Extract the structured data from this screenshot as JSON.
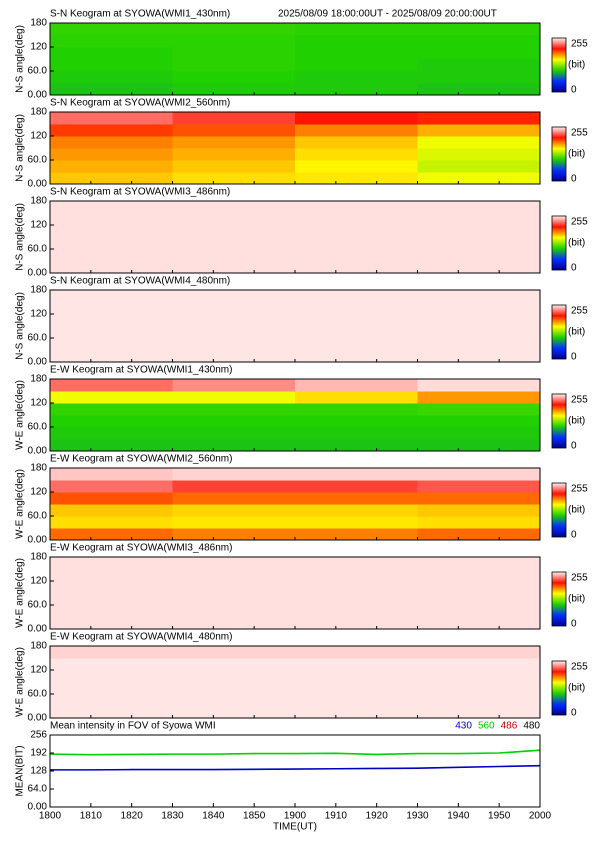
{
  "chart_data": [
    {
      "type": "heatmap",
      "title": "S-N Keogram at SYOWA(WMI1_430nm)",
      "subtitle": "2025/08/09 18:00:00UT - 2025/08/09 20:00:00UT",
      "ylabel": "N-S angle(deg)",
      "x": [
        0,
        30,
        60,
        90,
        120
      ],
      "y": [
        0,
        30,
        60,
        90,
        120,
        150,
        180
      ],
      "values": [
        [
          98,
          100,
          100,
          98
        ],
        [
          100,
          102,
          100,
          100
        ],
        [
          102,
          104,
          102,
          100
        ],
        [
          102,
          104,
          102,
          102
        ],
        [
          104,
          104,
          102,
          102
        ],
        [
          106,
          106,
          104,
          104
        ]
      ],
      "ylim": [
        0,
        180
      ],
      "yticks": [
        {
          "value": 0,
          "label": "0.00"
        },
        {
          "value": 60,
          "label": "60.0"
        },
        120,
        180
      ],
      "colormap": [
        "#000090",
        "#0030ff",
        "#20d000",
        "#ffff00",
        "#ff1000",
        "#fff2f2"
      ],
      "colorbar": {
        "ticks": [
          0,
          255
        ],
        "label": "(bit)"
      }
    },
    {
      "type": "heatmap",
      "title": "S-N Keogram at SYOWA(WMI2_560nm)",
      "ylabel": "N-S angle(deg)",
      "x": [
        0,
        30,
        60,
        90,
        120
      ],
      "y": [
        0,
        30,
        60,
        90,
        120,
        150,
        180
      ],
      "values": [
        [
          165,
          160,
          158,
          150
        ],
        [
          170,
          165,
          155,
          140
        ],
        [
          175,
          170,
          160,
          145
        ],
        [
          180,
          175,
          165,
          150
        ],
        [
          195,
          190,
          180,
          170
        ],
        [
          225,
          215,
          205,
          200
        ]
      ],
      "ylim": [
        0,
        180
      ],
      "yticks": [
        {
          "value": 0,
          "label": "0.00"
        },
        {
          "value": 60,
          "label": "60.0"
        },
        120,
        180
      ],
      "colormap": [
        "#000090",
        "#0030ff",
        "#20d000",
        "#ffff00",
        "#ff1000",
        "#fff2f2"
      ],
      "colorbar": {
        "ticks": [
          0,
          255
        ],
        "label": "(bit)"
      }
    },
    {
      "type": "heatmap",
      "title": "S-N Keogram at SYOWA(WMI3_486nm)",
      "ylabel": "N-S angle(deg)",
      "x": [
        0,
        30,
        60,
        90,
        120
      ],
      "y": [
        0,
        30,
        60,
        90,
        120,
        150,
        180
      ],
      "values": [
        [
          251,
          251,
          251,
          251
        ],
        [
          251,
          251,
          251,
          251
        ],
        [
          251,
          251,
          251,
          251
        ],
        [
          251,
          251,
          251,
          251
        ],
        [
          251,
          251,
          251,
          251
        ],
        [
          251,
          251,
          251,
          251
        ]
      ],
      "ylim": [
        0,
        180
      ],
      "yticks": [
        {
          "value": 0,
          "label": "0.00"
        },
        {
          "value": 60,
          "label": "60.0"
        },
        120,
        180
      ],
      "colormap": [
        "#000090",
        "#0030ff",
        "#20d000",
        "#ffff00",
        "#ff1000",
        "#fff2f2"
      ],
      "colorbar": {
        "ticks": [
          0,
          255
        ],
        "label": "(bit)"
      }
    },
    {
      "type": "heatmap",
      "title": "S-N Keogram at SYOWA(WMI4_480nm)",
      "ylabel": "N-S angle(deg)",
      "x": [
        0,
        30,
        60,
        90,
        120
      ],
      "y": [
        0,
        30,
        60,
        90,
        120,
        150,
        180
      ],
      "values": [
        [
          252,
          252,
          252,
          252
        ],
        [
          252,
          252,
          252,
          252
        ],
        [
          252,
          252,
          252,
          252
        ],
        [
          252,
          252,
          252,
          252
        ],
        [
          252,
          252,
          252,
          252
        ],
        [
          252,
          252,
          252,
          252
        ]
      ],
      "ylim": [
        0,
        180
      ],
      "yticks": [
        {
          "value": 0,
          "label": "0.00"
        },
        {
          "value": 60,
          "label": "60.0"
        },
        120,
        180
      ],
      "colormap": [
        "#000090",
        "#0030ff",
        "#20d000",
        "#ffff00",
        "#ff1000",
        "#fff2f2"
      ],
      "colorbar": {
        "ticks": [
          0,
          255
        ],
        "label": "(bit)"
      }
    },
    {
      "type": "heatmap",
      "title": "E-W Keogram at SYOWA(WMI1_430nm)",
      "ylabel": "W-E angle(deg)",
      "x": [
        0,
        30,
        60,
        90,
        120
      ],
      "y": [
        0,
        30,
        60,
        90,
        120,
        150,
        180
      ],
      "values": [
        [
          98,
          98,
          98,
          98
        ],
        [
          100,
          100,
          100,
          100
        ],
        [
          102,
          102,
          102,
          102
        ],
        [
          106,
          106,
          106,
          108
        ],
        [
          150,
          150,
          160,
          175
        ],
        [
          225,
          232,
          242,
          250
        ]
      ],
      "ylim": [
        0,
        180
      ],
      "yticks": [
        {
          "value": 0,
          "label": "0.00"
        },
        {
          "value": 60,
          "label": "60.0"
        },
        120,
        180
      ],
      "colormap": [
        "#000090",
        "#0030ff",
        "#20d000",
        "#ffff00",
        "#ff1000",
        "#fff2f2"
      ],
      "colorbar": {
        "ticks": [
          0,
          255
        ],
        "label": "(bit)"
      }
    },
    {
      "type": "heatmap",
      "title": "E-W Keogram at SYOWA(WMI2_560nm)",
      "ylabel": "W-E angle(deg)",
      "x": [
        0,
        30,
        60,
        90,
        120
      ],
      "y": [
        0,
        30,
        60,
        90,
        120,
        150,
        180
      ],
      "values": [
        [
          185,
          180,
          180,
          185
        ],
        [
          160,
          158,
          158,
          160
        ],
        [
          165,
          162,
          162,
          165
        ],
        [
          190,
          185,
          185,
          185
        ],
        [
          225,
          215,
          215,
          220
        ],
        [
          245,
          248,
          248,
          248
        ]
      ],
      "ylim": [
        0,
        180
      ],
      "yticks": [
        {
          "value": 0,
          "label": "0.00"
        },
        {
          "value": 60,
          "label": "60.0"
        },
        120,
        180
      ],
      "colormap": [
        "#000090",
        "#0030ff",
        "#20d000",
        "#ffff00",
        "#ff1000",
        "#fff2f2"
      ],
      "colorbar": {
        "ticks": [
          0,
          255
        ],
        "label": "(bit)"
      }
    },
    {
      "type": "heatmap",
      "title": "E-W Keogram at SYOWA(WMI3_486nm)",
      "ylabel": "W-E angle(deg)",
      "x": [
        0,
        30,
        60,
        90,
        120
      ],
      "y": [
        0,
        30,
        60,
        90,
        120,
        150,
        180
      ],
      "values": [
        [
          251,
          251,
          251,
          251
        ],
        [
          251,
          251,
          251,
          251
        ],
        [
          251,
          251,
          251,
          251
        ],
        [
          251,
          251,
          251,
          251
        ],
        [
          251,
          251,
          251,
          251
        ],
        [
          251,
          251,
          251,
          251
        ]
      ],
      "ylim": [
        0,
        180
      ],
      "yticks": [
        {
          "value": 0,
          "label": "0.00"
        },
        {
          "value": 60,
          "label": "60.0"
        },
        120,
        180
      ],
      "colormap": [
        "#000090",
        "#0030ff",
        "#20d000",
        "#ffff00",
        "#ff1000",
        "#fff2f2"
      ],
      "colorbar": {
        "ticks": [
          0,
          255
        ],
        "label": "(bit)"
      }
    },
    {
      "type": "heatmap",
      "title": "E-W Keogram at SYOWA(WMI4_480nm)",
      "ylabel": "W-E angle(deg)",
      "x": [
        0,
        30,
        60,
        90,
        120
      ],
      "y": [
        0,
        30,
        60,
        90,
        120,
        150,
        180
      ],
      "values": [
        [
          252,
          252,
          252,
          252
        ],
        [
          252,
          252,
          252,
          252
        ],
        [
          252,
          252,
          252,
          252
        ],
        [
          252,
          252,
          252,
          252
        ],
        [
          252,
          252,
          252,
          252
        ],
        [
          248,
          248,
          248,
          248
        ]
      ],
      "ylim": [
        0,
        180
      ],
      "yticks": [
        {
          "value": 0,
          "label": "0.00"
        },
        {
          "value": 60,
          "label": "60.0"
        },
        120,
        180
      ],
      "colormap": [
        "#000090",
        "#0030ff",
        "#20d000",
        "#ffff00",
        "#ff1000",
        "#fff2f2"
      ],
      "colorbar": {
        "ticks": [
          0,
          255
        ],
        "label": "(bit)"
      }
    },
    {
      "type": "line",
      "title": "Mean intensity in FOV of Syowa WMI",
      "ylabel": "MEAN(BIT)",
      "xlabel": "TIME(UT)",
      "x": [
        0,
        10,
        20,
        30,
        40,
        50,
        60,
        70,
        80,
        90,
        100,
        110,
        120
      ],
      "series": [
        {
          "name": "430",
          "color": "#0000c0",
          "values": [
            132,
            132,
            133,
            133,
            133,
            134,
            135,
            136,
            137,
            138,
            141,
            144,
            147
          ]
        },
        {
          "name": "560",
          "color": "#00d000",
          "values": [
            188,
            186,
            187,
            188,
            188,
            190,
            190,
            191,
            187,
            190,
            190,
            192,
            202
          ]
        },
        {
          "name": "486",
          "color": "#d00000",
          "values": [
            null,
            null,
            null,
            null,
            null,
            null,
            null,
            null,
            null,
            null,
            null,
            null,
            null
          ]
        },
        {
          "name": "480",
          "color": "#000000",
          "values": [
            null,
            null,
            null,
            null,
            null,
            null,
            null,
            null,
            null,
            null,
            null,
            null,
            null
          ]
        }
      ],
      "xlim": [
        0,
        120
      ],
      "xticks": [
        {
          "value": 0,
          "label": "1800"
        },
        {
          "value": 10,
          "label": "1810"
        },
        {
          "value": 20,
          "label": "1820"
        },
        {
          "value": 30,
          "label": "1830"
        },
        {
          "value": 40,
          "label": "1840"
        },
        {
          "value": 50,
          "label": "1850"
        },
        {
          "value": 60,
          "label": "1900"
        },
        {
          "value": 70,
          "label": "1910"
        },
        {
          "value": 80,
          "label": "1920"
        },
        {
          "value": 90,
          "label": "1930"
        },
        {
          "value": 100,
          "label": "1940"
        },
        {
          "value": 110,
          "label": "1950"
        },
        {
          "value": 120,
          "label": "2000"
        }
      ],
      "ylim": [
        0,
        256
      ],
      "yticks": [
        {
          "value": 0,
          "label": "0.00"
        },
        {
          "value": 64,
          "label": "64.0"
        },
        128,
        192,
        256
      ]
    }
  ]
}
